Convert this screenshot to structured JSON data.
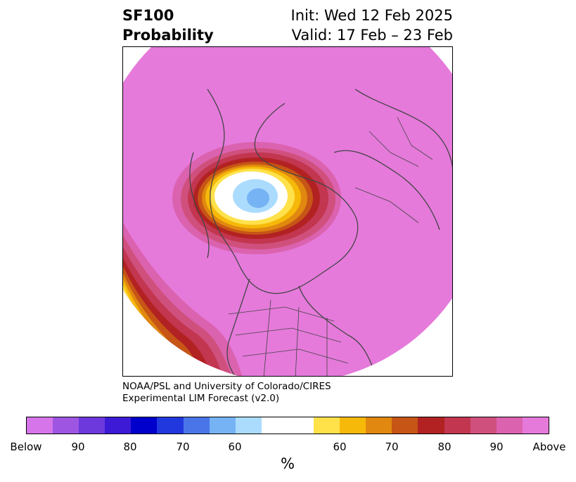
{
  "header": {
    "title_line1": "SF100",
    "title_line2": "Probability",
    "init": "Init: Wed 12 Feb 2025",
    "valid": "Valid: 17 Feb – 23 Feb"
  },
  "credit": {
    "line1": "NOAA/PSL and University of Colorado/CIRES",
    "line2": "Experimental LIM Forecast (v2.0)"
  },
  "colorbar": {
    "colors": [
      "#d675e9",
      "#9d55e2",
      "#6d38dc",
      "#3c1ad6",
      "#0000cc",
      "#2138de",
      "#4a75e8",
      "#76b3f4",
      "#abdcfe",
      "#ffffff",
      "#ffe14a",
      "#f6b90a",
      "#e0880f",
      "#c65516",
      "#b22222",
      "#c23650",
      "#d0507d",
      "#db62ae",
      "#e57adb"
    ],
    "tick_labels": [
      "Below",
      "90",
      "80",
      "70",
      "60",
      "60",
      "70",
      "80",
      "90",
      "Above"
    ],
    "units": "%"
  },
  "map": {
    "base_color": "#e57adb",
    "projection": "north-polar-stereographic"
  }
}
